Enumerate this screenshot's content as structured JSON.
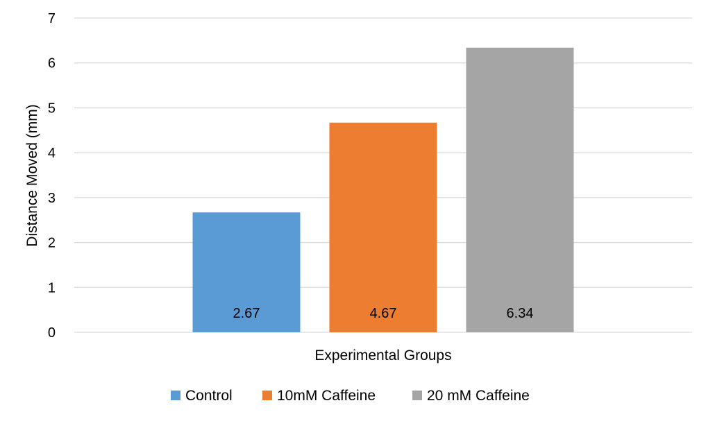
{
  "chart_data": {
    "type": "bar",
    "title": "",
    "xlabel": "Experimental Groups",
    "ylabel": "Distance Moved (mm)",
    "ylim": [
      0,
      7
    ],
    "yticks": [
      0,
      1,
      2,
      3,
      4,
      5,
      6,
      7
    ],
    "grid": true,
    "legend_position": "bottom",
    "series": [
      {
        "name": "Control",
        "values": [
          2.67
        ],
        "data_label": "2.67",
        "color": "#5b9bd5"
      },
      {
        "name": "10mM Caffeine",
        "values": [
          4.67
        ],
        "data_label": "4.67",
        "color": "#ed7d31"
      },
      {
        "name": "20 mM Caffeine",
        "values": [
          6.34
        ],
        "data_label": "6.34",
        "color": "#a5a5a5"
      }
    ],
    "colors": {
      "gridline": "#d9d9d9",
      "axis": "#d9d9d9",
      "text": "#000000"
    }
  }
}
